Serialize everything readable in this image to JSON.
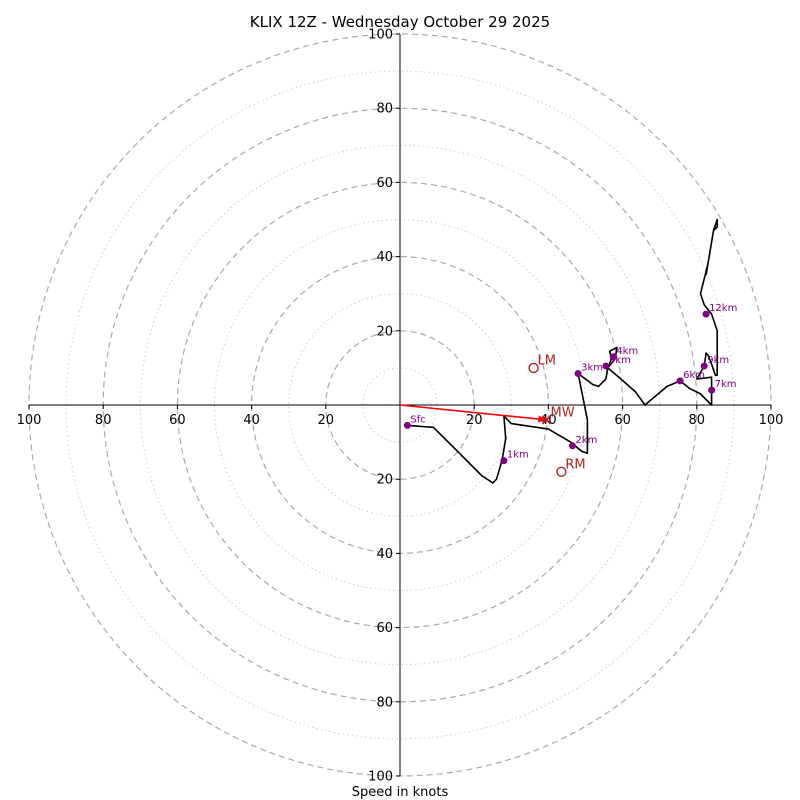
{
  "chart_data": {
    "type": "hodograph",
    "title": "KLIX 12Z - Wednesday October 29 2025",
    "xlabel": "Speed in knots",
    "range": [
      -100,
      100
    ],
    "ring_major": [
      20,
      40,
      60,
      80,
      100
    ],
    "ring_minor": [
      10,
      30,
      50,
      70,
      90
    ],
    "tick_values": [
      20,
      40,
      60,
      80,
      100
    ],
    "tick_labels": [
      "20",
      "40",
      "60",
      "80",
      "100"
    ],
    "colors": {
      "trace": "#000000",
      "height": "#800080",
      "vector": "#b22222",
      "mean_wind": "#ff0000",
      "grid": "#aaaaaa"
    },
    "trace": [
      [
        2,
        -5.5
      ],
      [
        9,
        -6
      ],
      [
        16,
        -13
      ],
      [
        22,
        -19
      ],
      [
        25,
        -21
      ],
      [
        26,
        -20
      ],
      [
        27.5,
        -15
      ],
      [
        28,
        -12
      ],
      [
        28.5,
        -9
      ],
      [
        28,
        -3
      ],
      [
        30,
        -5
      ],
      [
        40,
        -6.5
      ],
      [
        46,
        -10
      ],
      [
        49,
        -12.5
      ],
      [
        50.5,
        -13
      ],
      [
        50.5,
        -4
      ],
      [
        48,
        8.5
      ],
      [
        52,
        5.5
      ],
      [
        53.5,
        5
      ],
      [
        55.5,
        7
      ],
      [
        56,
        10
      ],
      [
        57,
        12.5
      ],
      [
        56.5,
        14.5
      ],
      [
        58.5,
        15.5
      ],
      [
        58,
        12.5
      ],
      [
        56,
        10
      ],
      [
        59,
        7.5
      ],
      [
        63.5,
        3.5
      ],
      [
        66,
        0
      ],
      [
        72,
        5
      ],
      [
        75.5,
        6.5
      ],
      [
        78,
        4.5
      ],
      [
        81,
        3
      ],
      [
        84,
        0
      ],
      [
        84,
        4.5
      ],
      [
        84,
        7.5
      ],
      [
        80,
        7
      ],
      [
        82,
        10.5
      ],
      [
        82.5,
        14
      ],
      [
        83,
        13.5
      ],
      [
        84,
        11
      ],
      [
        85,
        8
      ],
      [
        85.5,
        8
      ],
      [
        85.5,
        20
      ],
      [
        84,
        24.5
      ],
      [
        82,
        27
      ],
      [
        81,
        30
      ],
      [
        83,
        38
      ],
      [
        84.5,
        47
      ],
      [
        85.5,
        50
      ],
      [
        85.5,
        48
      ],
      [
        84.5,
        47
      ],
      [
        83,
        38
      ],
      [
        82.5,
        35
      ]
    ],
    "height_markers": [
      {
        "label": "Sfc",
        "u": 2,
        "v": -5.5
      },
      {
        "label": "1km",
        "u": 28,
        "v": -15
      },
      {
        "label": "2km",
        "u": 46.5,
        "v": -11
      },
      {
        "label": "3km",
        "u": 48,
        "v": 8.5
      },
      {
        "label": "4km",
        "u": 57.5,
        "v": 13
      },
      {
        "label": "5km",
        "u": 55.5,
        "v": 10.5
      },
      {
        "label": "6km",
        "u": 75.5,
        "v": 6.5
      },
      {
        "label": "7km",
        "u": 84,
        "v": 4
      },
      {
        "label": "9km",
        "u": 82,
        "v": 10.5
      },
      {
        "label": "12km",
        "u": 82.5,
        "v": 24.5
      }
    ],
    "storm_motion": [
      {
        "label": "LM",
        "u": 36,
        "v": 10
      },
      {
        "label": "RM",
        "u": 43.5,
        "v": -18
      },
      {
        "label": "MW",
        "u": 39.5,
        "v": -4
      }
    ],
    "mean_wind_vector": {
      "from": [
        0,
        0
      ],
      "to": [
        39.5,
        -4
      ]
    }
  }
}
